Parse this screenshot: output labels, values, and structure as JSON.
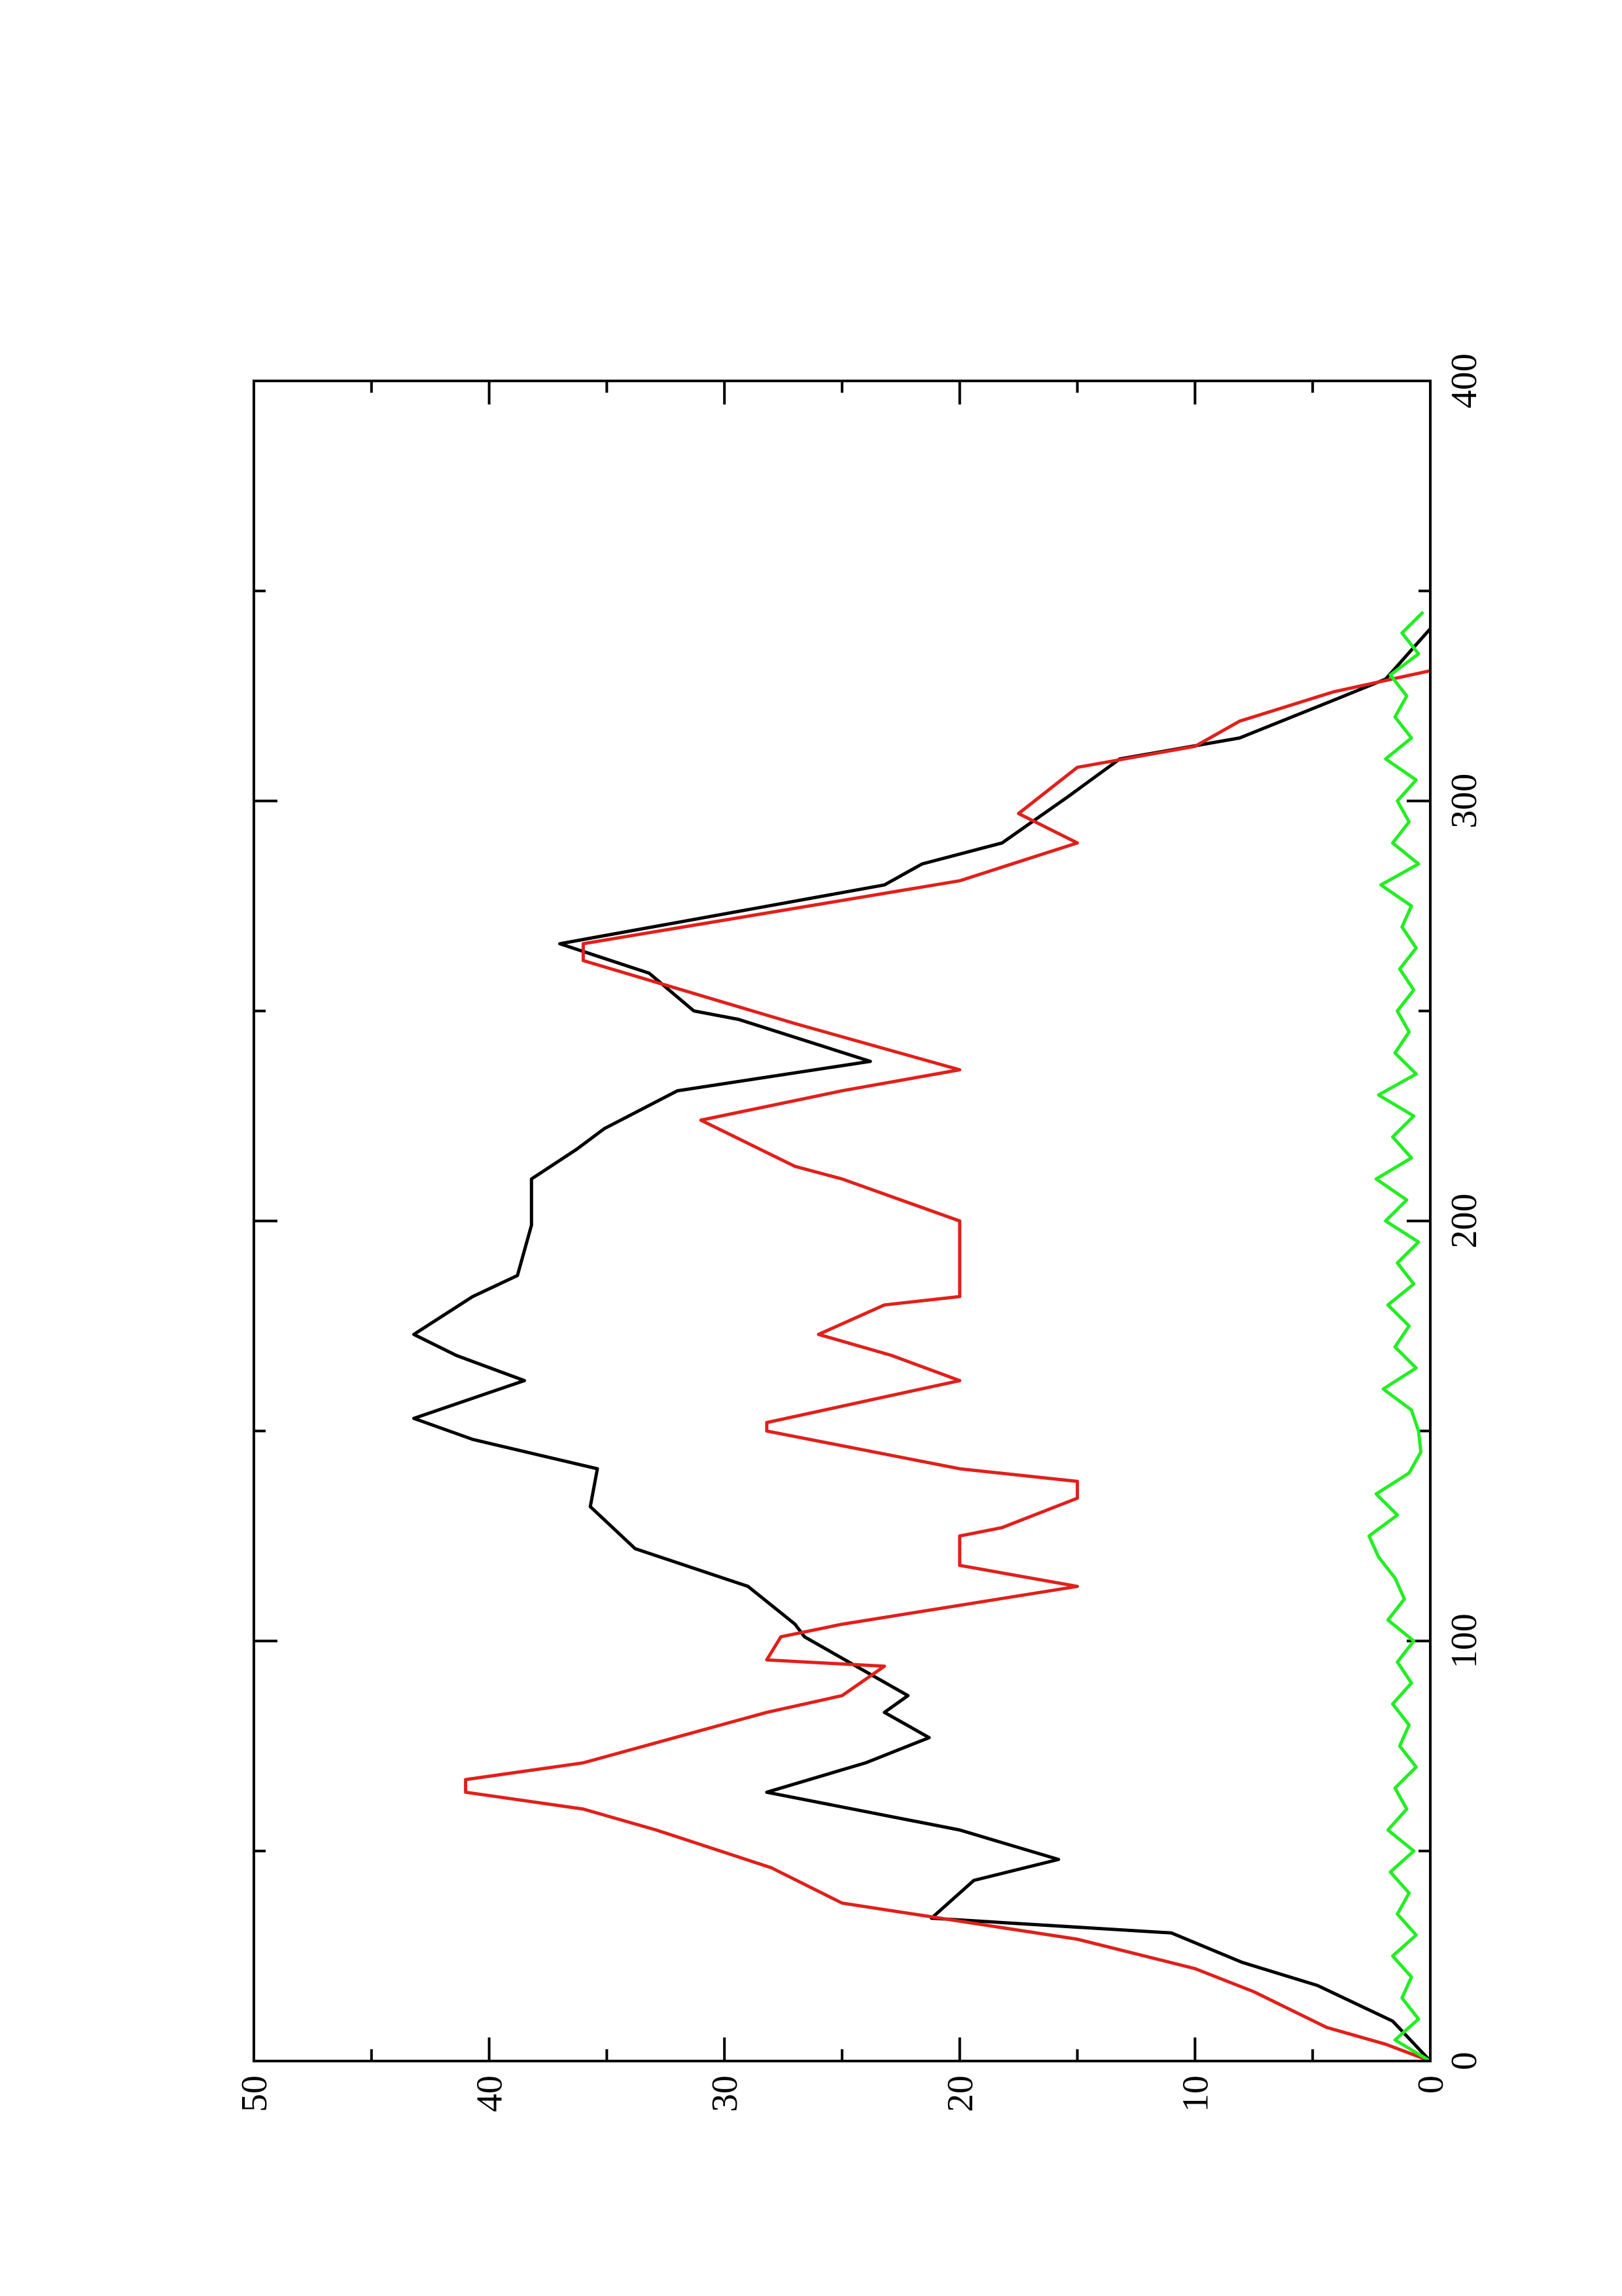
{
  "chart_data": {
    "type": "line",
    "xlim": [
      0,
      400
    ],
    "xticks": [
      0,
      100,
      200,
      300,
      400
    ],
    "ylim": [
      0,
      50
    ],
    "yticks": [
      0,
      10,
      20,
      30,
      40,
      50
    ],
    "series": [
      {
        "color": "#000000",
        "x": [
          0,
          9.5,
          18,
          23.5,
          30.5,
          34,
          43,
          48,
          55,
          64,
          71,
          77,
          83,
          87,
          94,
          101,
          104,
          113,
          122,
          132,
          141,
          148,
          153,
          162,
          168,
          173,
          182,
          187,
          199,
          210,
          217,
          222,
          231,
          238,
          248,
          250,
          259,
          266,
          280,
          285,
          290,
          301,
          310,
          315,
          324,
          329,
          341
        ],
        "values": [
          0,
          1.6,
          4.8,
          8,
          11,
          21.2,
          19.4,
          15.8,
          20,
          28.2,
          24,
          21.3,
          23.2,
          22.2,
          24.4,
          26.6,
          27,
          29,
          33.8,
          35.7,
          35.4,
          40.7,
          43.2,
          38.5,
          41.4,
          43.2,
          40.7,
          38.8,
          38.2,
          38.2,
          36.3,
          35.1,
          32,
          23.8,
          29.4,
          31.3,
          33.2,
          37,
          23.2,
          21.6,
          18.2,
          15.4,
          13.2,
          8.1,
          4.1,
          1.9,
          0
        ]
      },
      {
        "color": "#e0201b",
        "x": [
          0,
          4,
          8,
          16.5,
          22,
          29,
          37.6,
          46,
          55,
          60,
          64,
          67,
          71,
          83,
          87,
          94,
          95.5,
          101,
          104,
          113,
          118,
          125,
          127,
          134,
          138,
          141,
          150,
          152,
          162,
          168,
          173,
          180,
          182,
          200,
          210,
          213,
          224,
          231,
          236,
          247,
          252,
          262,
          266,
          281,
          290,
          297,
          308,
          313,
          319,
          326,
          331
        ],
        "values": [
          0,
          1.9,
          4.4,
          7.5,
          10,
          15,
          25,
          28,
          32.9,
          36,
          41,
          41,
          36,
          28.2,
          25,
          23.2,
          28.2,
          27.6,
          25,
          15,
          20,
          20,
          18.2,
          15,
          15,
          20,
          28.2,
          28.2,
          20,
          22.9,
          26,
          23.2,
          20,
          20,
          25,
          27,
          31,
          25,
          20,
          27,
          30,
          36,
          36,
          20,
          15,
          17.5,
          15,
          10,
          8.1,
          4.1,
          0
        ]
      },
      {
        "color": "#22ee22",
        "x": [
          0,
          5,
          10,
          15,
          20,
          25,
          30,
          35,
          40,
          45,
          50,
          55,
          60,
          65,
          70,
          75,
          80,
          85,
          90,
          95,
          100,
          105,
          110,
          115,
          120,
          125,
          130,
          135,
          140,
          145,
          150,
          155,
          160,
          165,
          170,
          175,
          180,
          185,
          190,
          195,
          200,
          205,
          210,
          215,
          220,
          225,
          230,
          235,
          240,
          245,
          250,
          255,
          260,
          265,
          270,
          275,
          280,
          285,
          290,
          295,
          300,
          305,
          310,
          315,
          320,
          325,
          330,
          335,
          340,
          345
        ],
        "values": [
          0,
          1.5,
          0.5,
          1.2,
          0.8,
          1.6,
          0.6,
          1.4,
          0.9,
          1.7,
          0.7,
          1.8,
          1.0,
          1.5,
          0.6,
          1.3,
          0.9,
          1.6,
          0.8,
          1.4,
          0.7,
          1.8,
          1.1,
          1.5,
          2.2,
          2.6,
          1.4,
          2.3,
          0.9,
          0.4,
          0.5,
          0.8,
          2.0,
          0.6,
          1.5,
          0.9,
          1.8,
          0.7,
          1.4,
          0.5,
          1.9,
          1.0,
          2.3,
          0.8,
          1.6,
          0.7,
          2.2,
          0.6,
          1.5,
          0.9,
          1.4,
          0.7,
          1.3,
          0.6,
          1.2,
          0.8,
          2.1,
          0.5,
          1.6,
          0.9,
          1.4,
          0.6,
          1.9,
          0.8,
          1.5,
          1.0,
          1.7,
          0.5,
          1.2,
          0.3
        ]
      }
    ]
  }
}
